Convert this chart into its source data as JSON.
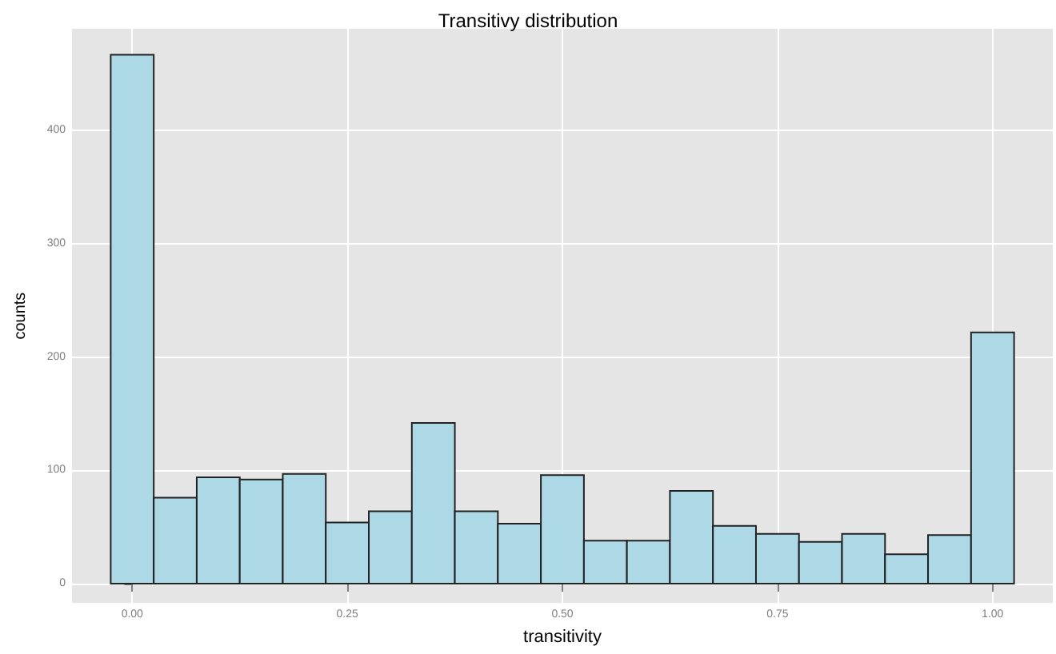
{
  "chart_data": {
    "type": "histogram",
    "title": "Transitivy distribution",
    "xlabel": "transitivity",
    "ylabel": "counts",
    "bins": [
      -0.025,
      0.025,
      0.075,
      0.125,
      0.175,
      0.225,
      0.275,
      0.325,
      0.375,
      0.425,
      0.475,
      0.525,
      0.575,
      0.625,
      0.675,
      0.725,
      0.775,
      0.825,
      0.875,
      0.925,
      0.975,
      1.025
    ],
    "values": [
      467,
      76,
      94,
      92,
      97,
      54,
      64,
      142,
      64,
      53,
      96,
      38,
      38,
      82,
      51,
      44,
      37,
      44,
      26,
      43,
      222
    ],
    "color": "#add8e6",
    "xlim": [
      -0.07,
      1.07
    ],
    "xticks": [
      {
        "value": 0,
        "label": "0.00"
      },
      {
        "value": 0.25,
        "label": "0.25"
      },
      {
        "value": 0.5,
        "label": "0.50"
      },
      {
        "value": 0.75,
        "label": "0.75"
      },
      {
        "value": 1,
        "label": "1.00"
      }
    ],
    "ylim": [
      -17,
      490
    ],
    "yticks": [
      0,
      100,
      200,
      300,
      400
    ],
    "grid": true
  }
}
